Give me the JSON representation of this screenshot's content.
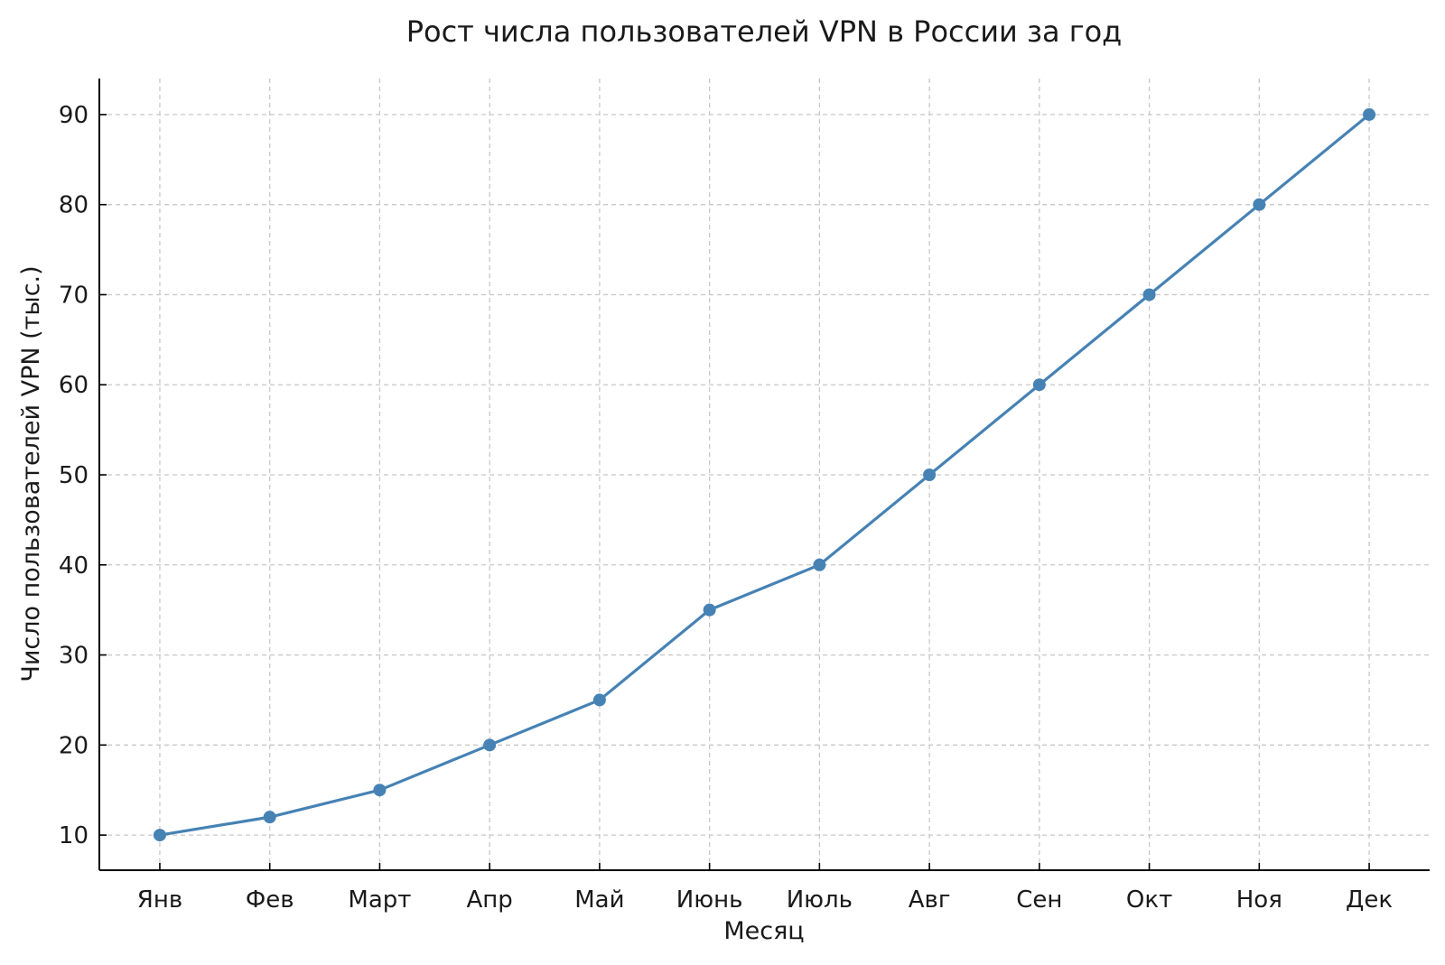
{
  "chart_data": {
    "type": "line",
    "title": "Рост числа пользователей VPN в России за год",
    "xlabel": "Месяц",
    "ylabel": "Число пользователей VPN (тыс.)",
    "categories": [
      "Янв",
      "Фев",
      "Март",
      "Апр",
      "Май",
      "Июнь",
      "Июль",
      "Авг",
      "Сен",
      "Окт",
      "Ноя",
      "Дек"
    ],
    "values": [
      10,
      12,
      15,
      20,
      25,
      35,
      40,
      50,
      60,
      70,
      80,
      90
    ],
    "yticks": [
      10,
      20,
      30,
      40,
      50,
      60,
      70,
      80,
      90
    ],
    "ylim": [
      6.1,
      94
    ],
    "grid": true,
    "marker": "circle",
    "line_color": "#4682b4"
  }
}
